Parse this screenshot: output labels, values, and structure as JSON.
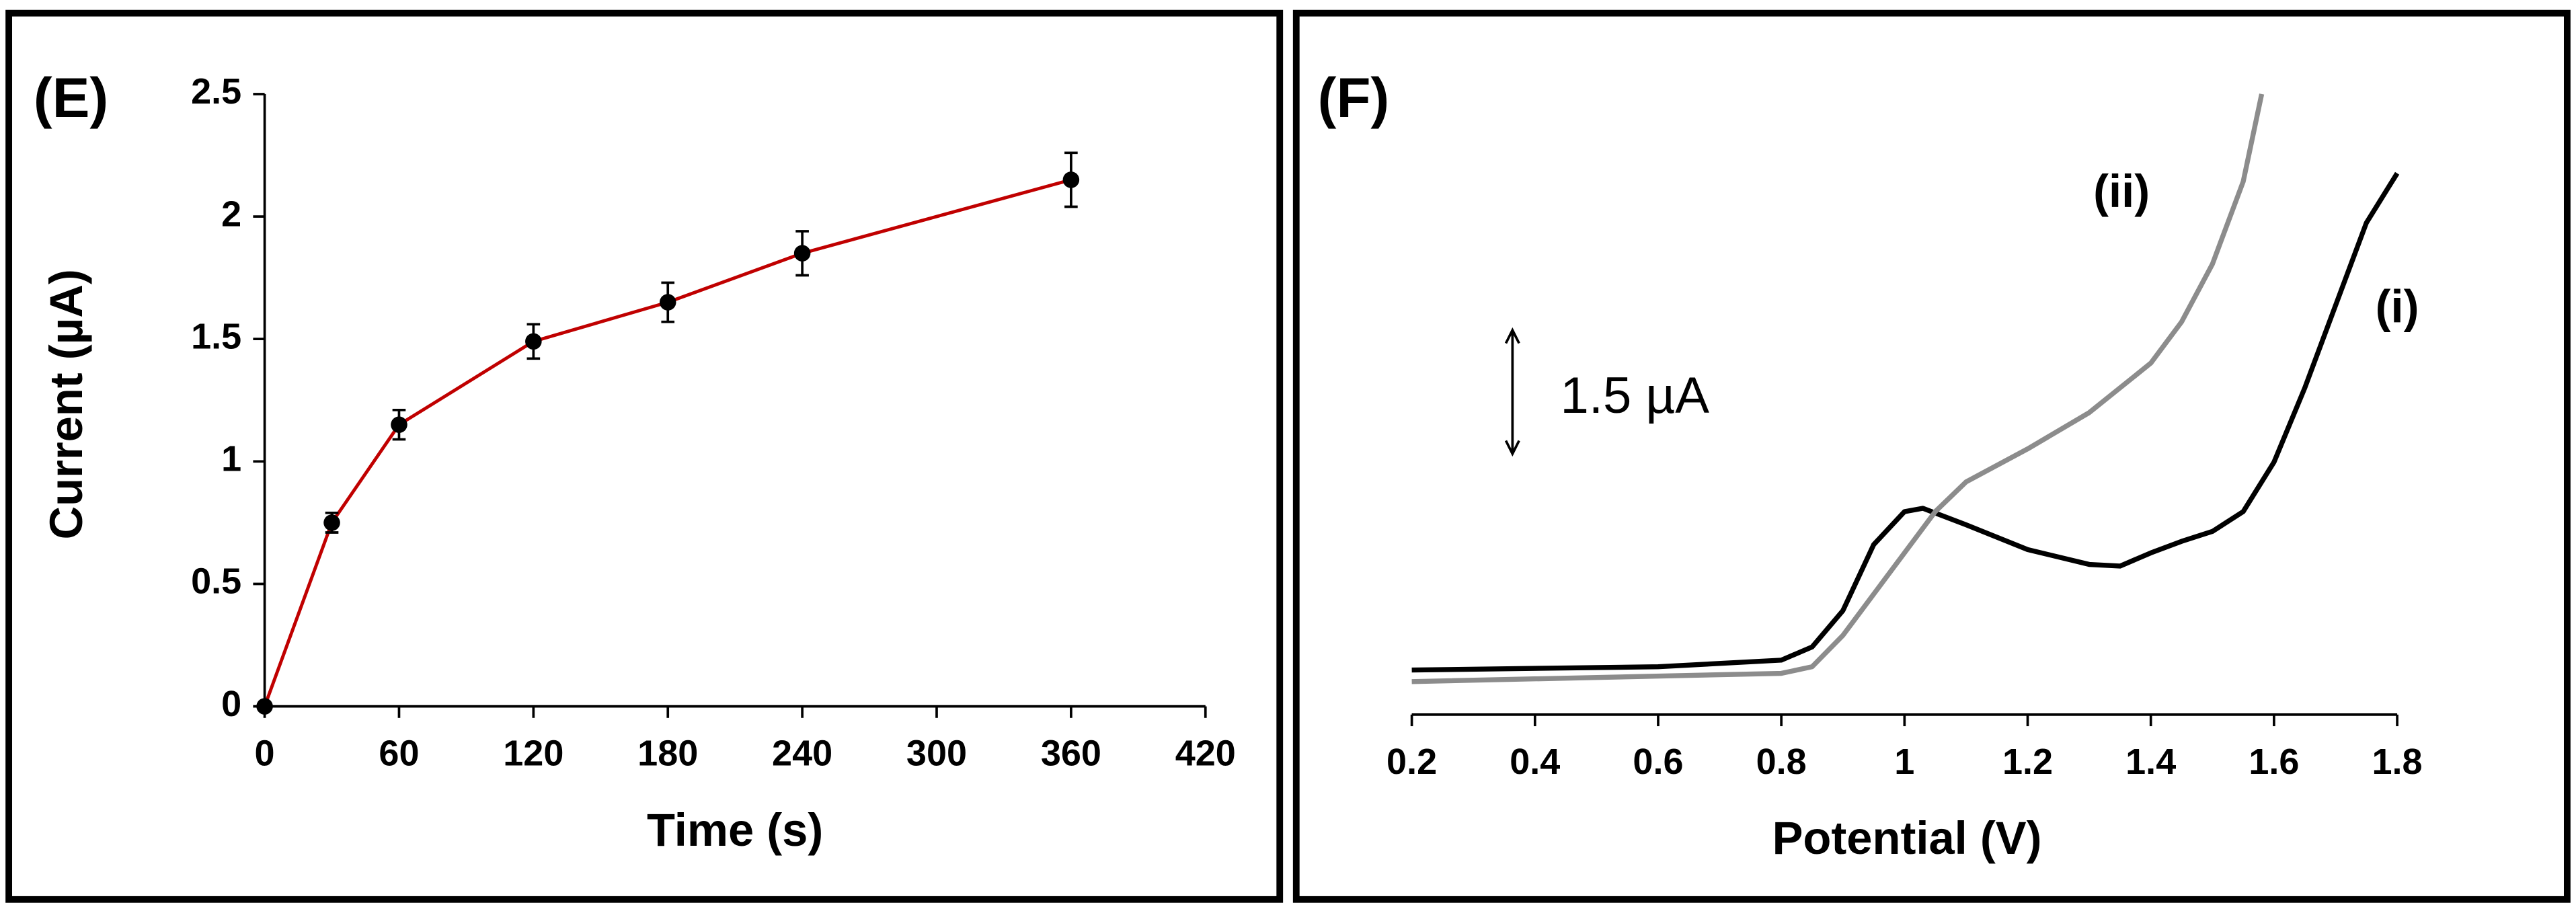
{
  "chart_data": [
    {
      "type": "line",
      "panel_label": "(E)",
      "x_label": "Time (s)",
      "y_label": "Current (µA)",
      "x": [
        0,
        30,
        60,
        120,
        180,
        240,
        360
      ],
      "values": [
        0,
        0.75,
        1.15,
        1.49,
        1.65,
        1.85,
        2.15
      ],
      "errors": [
        0.01,
        0.04,
        0.06,
        0.07,
        0.08,
        0.09,
        0.11
      ],
      "color": "#c00000",
      "marker_color": "#000000",
      "xlim": [
        0,
        420
      ],
      "xticks": [
        0,
        60,
        120,
        180,
        240,
        300,
        360,
        420
      ],
      "ylim": [
        0,
        2.5
      ],
      "yticks": [
        0,
        0.5,
        1,
        1.5,
        2,
        2.5
      ]
    },
    {
      "type": "line",
      "panel_label": "(F)",
      "x_label": "Potential (V)",
      "xlim": [
        0.2,
        1.8
      ],
      "xticks": [
        0.2,
        0.4,
        0.6,
        0.8,
        1,
        1.2,
        1.4,
        1.6,
        1.8
      ],
      "ylim": [
        0,
        7.66
      ],
      "scale_bar": {
        "value": 1.5,
        "label": "1.5 µA"
      },
      "series": [
        {
          "name": "(i)",
          "color": "#000000",
          "x": [
            0.2,
            0.6,
            0.8,
            0.85,
            0.9,
            0.95,
            1.0,
            1.03,
            1.1,
            1.2,
            1.3,
            1.35,
            1.4,
            1.45,
            1.5,
            1.55,
            1.6,
            1.65,
            1.7,
            1.75,
            1.8
          ],
          "values": [
            0.54,
            0.58,
            0.66,
            0.82,
            1.26,
            2.06,
            2.46,
            2.5,
            2.3,
            2.0,
            1.82,
            1.8,
            1.96,
            2.1,
            2.22,
            2.46,
            3.06,
            3.96,
            4.96,
            5.96,
            6.56
          ]
        },
        {
          "name": "(ii)",
          "color": "#8c8c8c",
          "x": [
            0.2,
            0.8,
            0.85,
            0.9,
            0.95,
            1.0,
            1.05,
            1.1,
            1.2,
            1.3,
            1.4,
            1.45,
            1.5,
            1.55,
            1.58
          ],
          "values": [
            0.4,
            0.5,
            0.58,
            0.96,
            1.46,
            1.96,
            2.46,
            2.82,
            3.22,
            3.66,
            4.26,
            4.76,
            5.46,
            6.46,
            7.52
          ]
        }
      ]
    }
  ]
}
